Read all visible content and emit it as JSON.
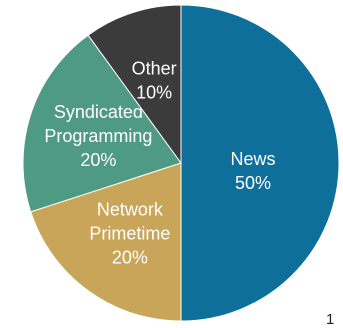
{
  "chart_data": {
    "type": "pie",
    "start": "12 o'clock",
    "direction": "clockwise",
    "slices": [
      {
        "lines": [
          "News",
          "50%"
        ],
        "value": 50,
        "color": "#0f6f9b"
      },
      {
        "lines": [
          "Network",
          "Primetime",
          "20%"
        ],
        "value": 20,
        "color": "#c9a55a"
      },
      {
        "lines": [
          "Syndicated",
          "Programming",
          "20%"
        ],
        "value": 20,
        "color": "#4f9a83"
      },
      {
        "lines": [
          "Other",
          "10%"
        ],
        "value": 10,
        "color": "#3b3b3b"
      }
    ]
  },
  "page_number": "1"
}
